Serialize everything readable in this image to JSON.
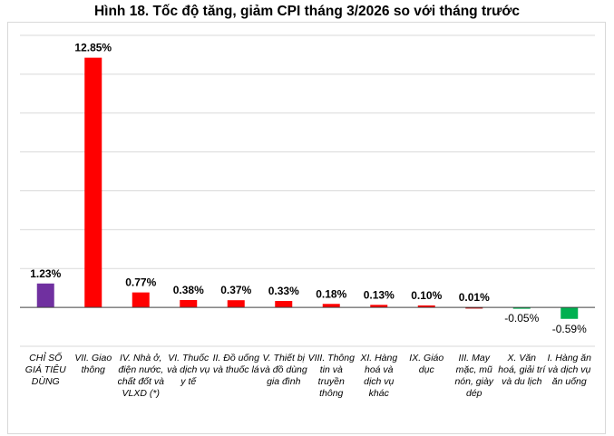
{
  "chart_data": {
    "type": "bar",
    "title": "Hình 18. Tốc độ tăng, giảm CPI tháng 3/2026 so với tháng trước",
    "categories": [
      "CHỈ SỐ GIÁ TIÊU DÙNG",
      "VII. Giao thông",
      "IV. Nhà ở, điện nước, chất đốt và VLXD (*)",
      "VI. Thuốc và dịch vụ y tế",
      "II. Đồ uống và thuốc lá",
      "V. Thiết bị và đồ dùng gia đình",
      "VIII. Thông tin và truyền thông",
      "XI. Hàng hoá và dịch vụ khác",
      "IX. Giáo dục",
      "III. May mặc, mũ nón, giày dép",
      "X. Văn hoá, giải trí và du lịch",
      "I. Hàng ăn và dịch vụ ăn uống"
    ],
    "values": [
      1.23,
      12.85,
      0.77,
      0.38,
      0.37,
      0.33,
      0.18,
      0.13,
      0.1,
      0.01,
      -0.05,
      -0.59
    ],
    "data_labels": [
      "1.23%",
      "12.85%",
      "0.77%",
      "0.38%",
      "0.37%",
      "0.33%",
      "0.18%",
      "0.13%",
      "0.10%",
      "0.01%",
      "-0.05%",
      "-0.59%"
    ],
    "bar_colors": [
      "#7030A0",
      "#FF0000",
      "#FF0000",
      "#FF0000",
      "#FF0000",
      "#FF0000",
      "#FF0000",
      "#FF0000",
      "#FF0000",
      "#C00000",
      "#00B050",
      "#00B050"
    ],
    "ylim": [
      -2,
      14
    ],
    "grid": true,
    "xlabel": "",
    "ylabel": ""
  }
}
